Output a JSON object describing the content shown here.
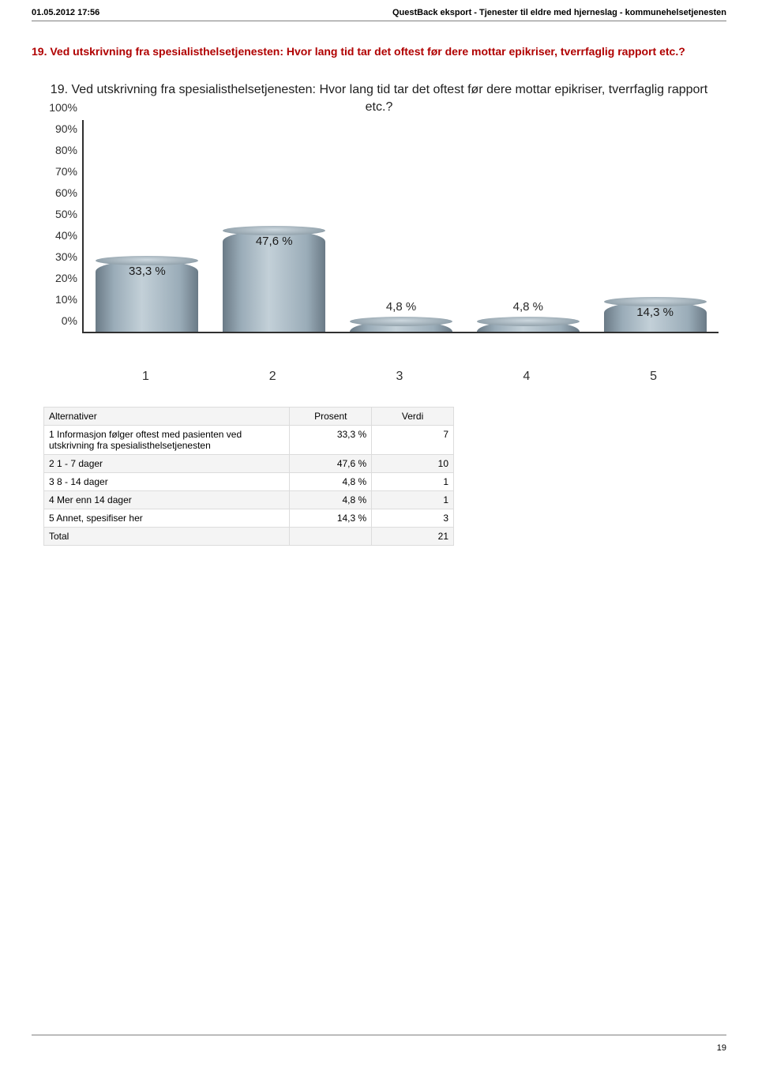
{
  "header": {
    "left": "01.05.2012 17:56",
    "right": "QuestBack eksport - Tjenester til eldre med hjerneslag - kommunehelsetjenesten"
  },
  "question_title": "19. Ved utskrivning fra spesialisthelsetjenesten: Hvor lang tid tar det oftest før dere mottar epikriser, tverrfaglig rapport etc.?",
  "chart": {
    "title": "19. Ved utskrivning fra spesialisthelsetjenesten: Hvor lang tid tar det oftest før dere mottar epikriser, tverrfaglig rapport etc.?",
    "type": "bar",
    "ylim": [
      0,
      100
    ],
    "yticks": [
      "0%",
      "10%",
      "20%",
      "30%",
      "40%",
      "50%",
      "60%",
      "70%",
      "80%",
      "90%",
      "100%"
    ],
    "categories": [
      "1",
      "2",
      "3",
      "4",
      "5"
    ],
    "values": [
      33.3,
      47.6,
      4.8,
      4.8,
      14.3
    ],
    "value_labels": [
      "33,3 %",
      "47,6 %",
      "4,8 %",
      "4,8 %",
      "14,3 %"
    ],
    "label_positions": [
      "inside",
      "inside",
      "above",
      "above",
      "inside"
    ],
    "bar_color_gradient": [
      "#6a7a86",
      "#c3d0d8"
    ],
    "axis_color": "#303030",
    "label_fontsize": 15,
    "tick_fontsize": 14,
    "background_color": "#ffffff"
  },
  "table": {
    "columns": [
      "Alternativer",
      "Prosent",
      "Verdi"
    ],
    "rows": [
      [
        "1 Informasjon følger oftest med pasienten ved utskrivning fra spesialisthelsetjenesten",
        "33,3 %",
        "7"
      ],
      [
        "2 1 - 7 dager",
        "47,6 %",
        "10"
      ],
      [
        "3 8 - 14 dager",
        "4,8 %",
        "1"
      ],
      [
        "4 Mer enn 14 dager",
        "4,8 %",
        "1"
      ],
      [
        "5 Annet, spesifiser her",
        "14,3 %",
        "3"
      ],
      [
        "Total",
        "",
        "21"
      ]
    ]
  },
  "page_number": "19"
}
